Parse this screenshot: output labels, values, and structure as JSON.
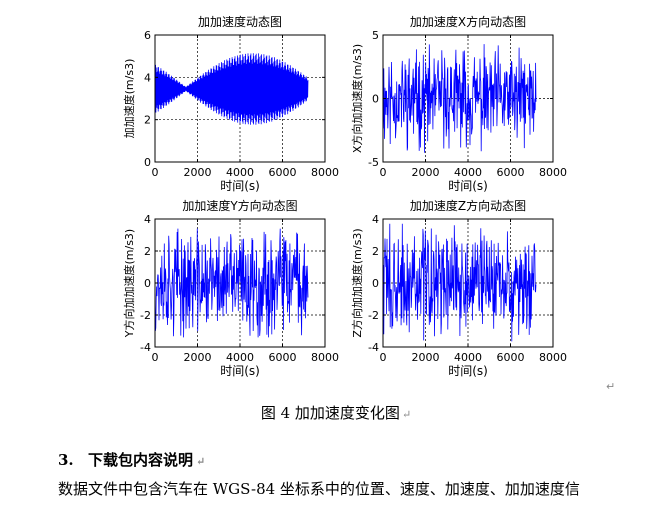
{
  "figure": {
    "caption": "图 4  加加速度变化图",
    "paragraph_mark": "↵",
    "charts": [
      {
        "id": "total",
        "title": "加加速度动态图",
        "ylabel": "加加速度(m/s3)",
        "xlabel": "时间(s)",
        "type": "line",
        "x_range": [
          0,
          8000
        ],
        "y_range": [
          0,
          6
        ],
        "x_ticks": [
          "0",
          "2000",
          "4000",
          "6000",
          "8000"
        ],
        "y_ticks": [
          "0",
          "2",
          "4",
          "6"
        ],
        "x_tick_values": [
          0,
          2000,
          4000,
          6000,
          8000
        ],
        "y_tick_values": [
          0,
          2,
          4,
          6
        ],
        "grid": true,
        "series_color": "#0000ff",
        "data_duration_s": 7200,
        "description": "oscillating envelope: wide near 0-1500 s and 4800-5600 s, converging near 3.5 around 2200 s"
      },
      {
        "id": "x",
        "title": "加加速度X方向动态图",
        "ylabel": "X方向加加速度(m/s3)",
        "xlabel": "时间(s)",
        "type": "line",
        "x_range": [
          0,
          8000
        ],
        "y_range": [
          -5,
          5
        ],
        "x_ticks": [
          "0",
          "2000",
          "4000",
          "6000",
          "8000"
        ],
        "y_ticks": [
          "-5",
          "0",
          "5"
        ],
        "x_tick_values": [
          0,
          2000,
          4000,
          6000,
          8000
        ],
        "y_tick_values": [
          -5,
          0,
          5
        ],
        "grid": true,
        "series_color": "#0000ff",
        "data_duration_s": 7200
      },
      {
        "id": "y",
        "title": "加加速度Y方向动态图",
        "ylabel": "Y方向加加速度(m/s3)",
        "xlabel": "时间(s)",
        "type": "line",
        "x_range": [
          0,
          8000
        ],
        "y_range": [
          -4,
          4
        ],
        "x_ticks": [
          "0",
          "2000",
          "4000",
          "6000",
          "8000"
        ],
        "y_ticks": [
          "-4",
          "-2",
          "0",
          "2",
          "4"
        ],
        "x_tick_values": [
          0,
          2000,
          4000,
          6000,
          8000
        ],
        "y_tick_values": [
          -4,
          -2,
          0,
          2,
          4
        ],
        "grid": true,
        "series_color": "#0000ff",
        "data_duration_s": 7200
      },
      {
        "id": "z",
        "title": "加加速度Z方向动态图",
        "ylabel": "Z方向加加速度(m/s3)",
        "xlabel": "时间(s)",
        "type": "line",
        "x_range": [
          0,
          8000
        ],
        "y_range": [
          -4,
          4
        ],
        "x_ticks": [
          "0",
          "2000",
          "4000",
          "6000",
          "8000"
        ],
        "y_ticks": [
          "-4",
          "-2",
          "0",
          "2",
          "4"
        ],
        "x_tick_values": [
          0,
          2000,
          4000,
          6000,
          8000
        ],
        "y_tick_values": [
          -4,
          -2,
          0,
          2,
          4
        ],
        "grid": true,
        "series_color": "#0000ff",
        "data_duration_s": 7200
      }
    ]
  },
  "section": {
    "number": "3.",
    "title": "下载包内容说明",
    "paragraph": "数据文件中包含汽车在 WGS-84 坐标系中的位置、速度、加速度、加加速度信"
  }
}
